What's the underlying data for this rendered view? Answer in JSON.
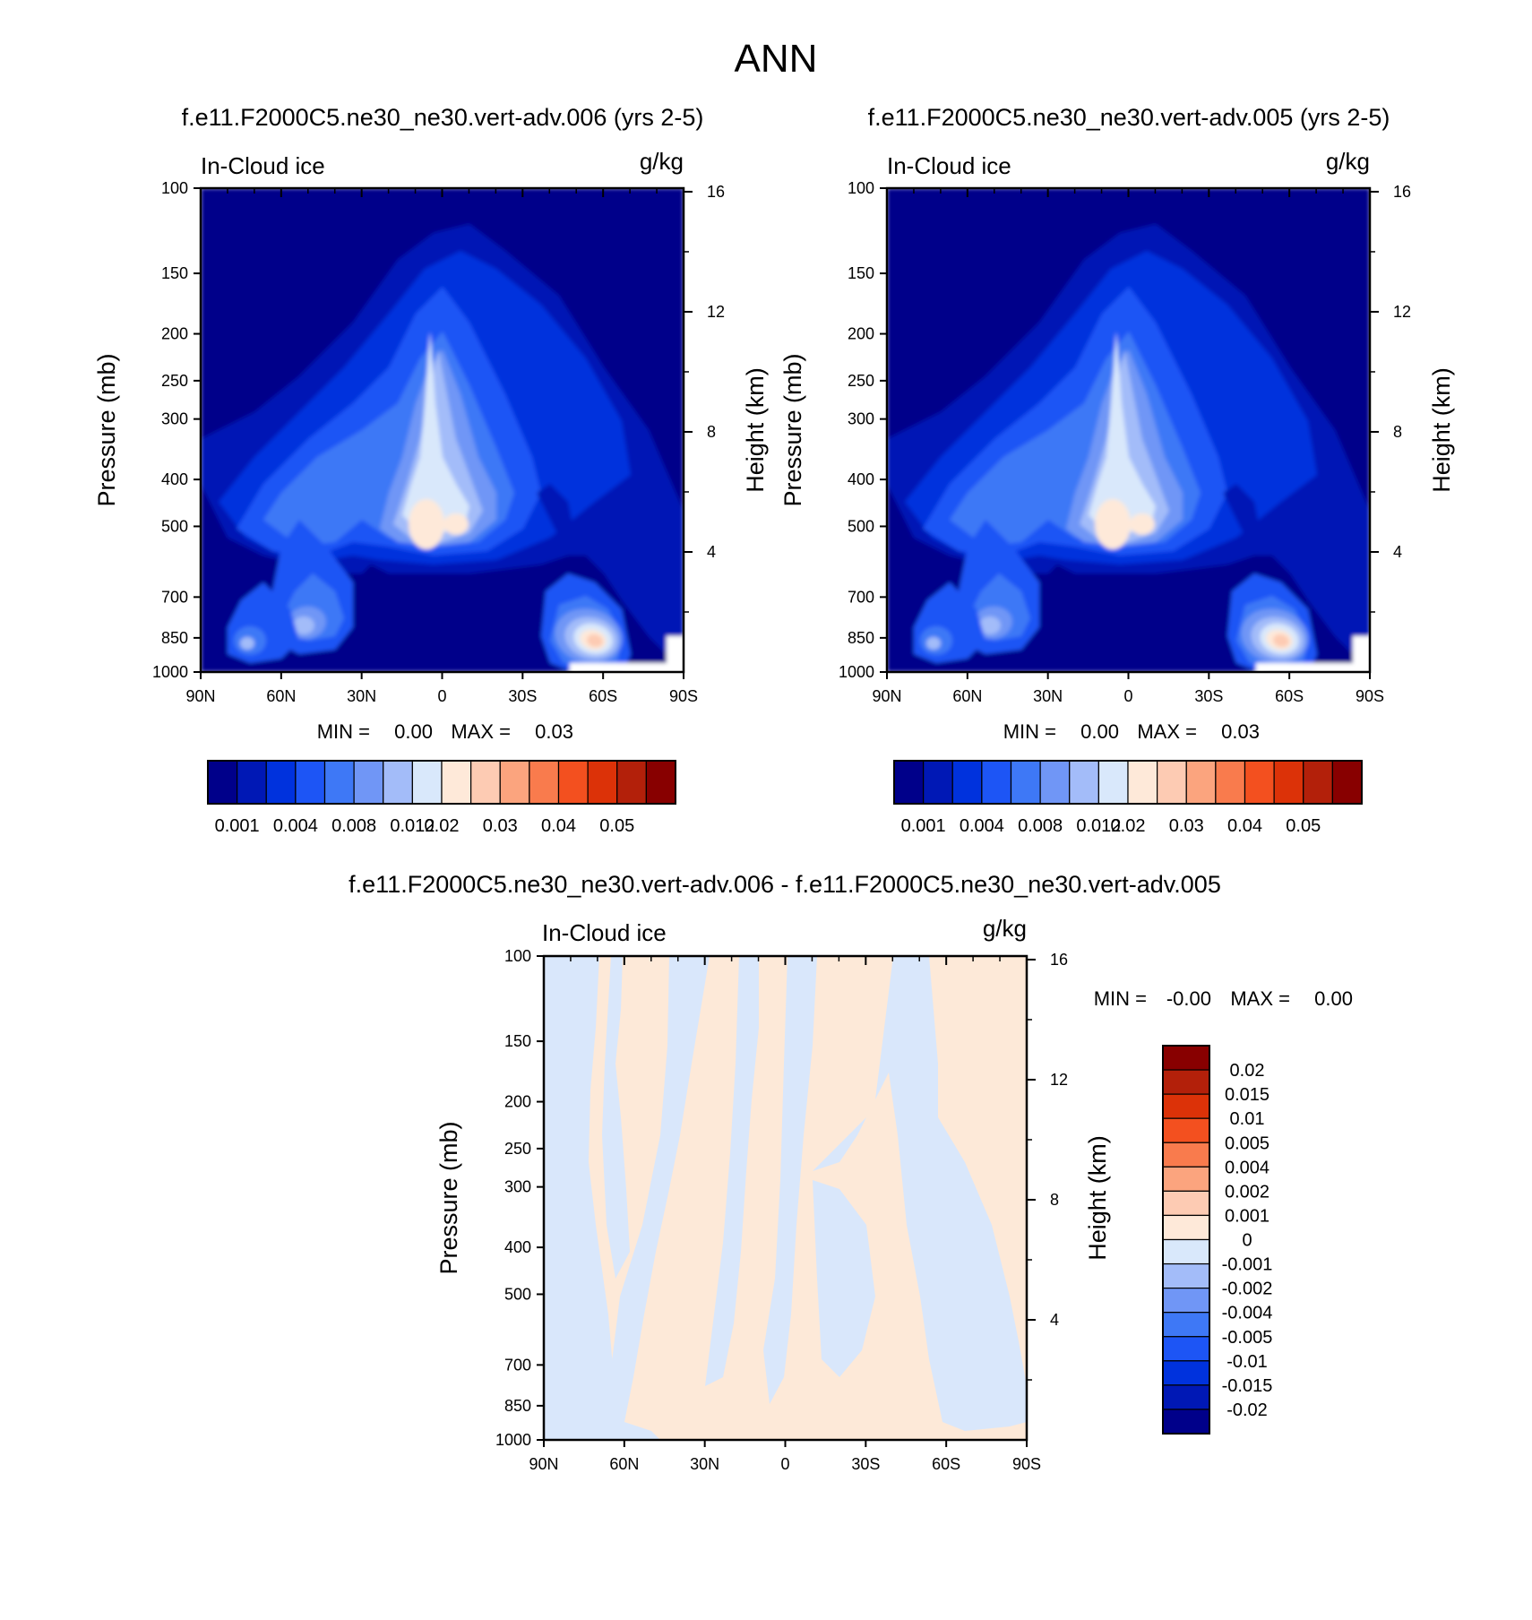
{
  "figure_title": "ANN",
  "colors": {
    "abs_levels": [
      "#00008a",
      "#0018b5",
      "#0032dd",
      "#1d55f5",
      "#3e78f6",
      "#7096f6",
      "#a3bcf9",
      "#d9e8fb",
      "#fee9d9",
      "#fdcbb3",
      "#fba47e",
      "#f97b4d",
      "#f3501f",
      "#dc3208",
      "#b3200a",
      "#880000"
    ],
    "diff_levels": [
      "#880000",
      "#b3200a",
      "#dc3208",
      "#f3501f",
      "#f97b4d",
      "#fba47e",
      "#fdcbb3",
      "#fee9d9",
      "#d9e8fb",
      "#a3bcf9",
      "#7096f6",
      "#3e78f6",
      "#1d55f5",
      "#0032dd",
      "#0018b5",
      "#00008a"
    ],
    "pos": "#fde9d8",
    "neg": "#d9e7fb",
    "border": "#000000"
  },
  "chart_data": [
    {
      "type": "heatmap",
      "title": "f.e11.F2000C5.ne30_ne30.vert-adv.006 (yrs 2-5)",
      "left_label": "In-Cloud ice",
      "unit_label": "g/kg",
      "ylabel": "Pressure (mb)",
      "ylabel_right": "Height (km)",
      "x_ticks": [
        "90N",
        "60N",
        "30N",
        "0",
        "30S",
        "60S",
        "90S"
      ],
      "x_range": [
        90,
        -90
      ],
      "y_ticks": [
        100,
        150,
        200,
        250,
        300,
        400,
        500,
        700,
        850,
        1000
      ],
      "y_range": [
        100,
        1000
      ],
      "y_scale": "log",
      "height_ticks": [
        16,
        12,
        8,
        4
      ],
      "min_label": "MIN = ",
      "min_value": "0.00",
      "max_label": "MAX = ",
      "max_value": "0.03",
      "colorbar_labels": [
        "0.001",
        "0.004",
        "0.008",
        "0.012",
        "0.02",
        "0.03",
        "0.04",
        "0.05"
      ],
      "colorbar_orientation": "horizontal"
    },
    {
      "type": "heatmap",
      "title": "f.e11.F2000C5.ne30_ne30.vert-adv.005 (yrs 2-5)",
      "left_label": "In-Cloud ice",
      "unit_label": "g/kg",
      "ylabel": "Pressure (mb)",
      "ylabel_right": "Height (km)",
      "x_ticks": [
        "90N",
        "60N",
        "30N",
        "0",
        "30S",
        "60S",
        "90S"
      ],
      "x_range": [
        90,
        -90
      ],
      "y_ticks": [
        100,
        150,
        200,
        250,
        300,
        400,
        500,
        700,
        850,
        1000
      ],
      "y_range": [
        100,
        1000
      ],
      "y_scale": "log",
      "height_ticks": [
        16,
        12,
        8,
        4
      ],
      "min_label": "MIN = ",
      "min_value": "0.00",
      "max_label": "MAX = ",
      "max_value": "0.03",
      "colorbar_labels": [
        "0.001",
        "0.004",
        "0.008",
        "0.012",
        "0.02",
        "0.03",
        "0.04",
        "0.05"
      ],
      "colorbar_orientation": "horizontal"
    },
    {
      "type": "heatmap",
      "title": "f.e11.F2000C5.ne30_ne30.vert-adv.006 - f.e11.F2000C5.ne30_ne30.vert-adv.005",
      "left_label": "In-Cloud ice",
      "unit_label": "g/kg",
      "ylabel": "Pressure (mb)",
      "ylabel_right": "Height (km)",
      "x_ticks": [
        "90N",
        "60N",
        "30N",
        "0",
        "30S",
        "60S",
        "90S"
      ],
      "x_range": [
        90,
        -90
      ],
      "y_ticks": [
        100,
        150,
        200,
        250,
        300,
        400,
        500,
        700,
        850,
        1000
      ],
      "y_range": [
        100,
        1000
      ],
      "y_scale": "log",
      "height_ticks": [
        16,
        12,
        8,
        4
      ],
      "min_label": "MIN = ",
      "min_value": "-0.00",
      "max_label": "MAX = ",
      "max_value": "0.00",
      "colorbar_labels": [
        "0.02",
        "0.015",
        "0.01",
        "0.005",
        "0.004",
        "0.002",
        "0.001",
        "0",
        "-0.001",
        "-0.002",
        "-0.004",
        "-0.005",
        "-0.01",
        "-0.015",
        "-0.02"
      ],
      "colorbar_orientation": "vertical"
    }
  ]
}
